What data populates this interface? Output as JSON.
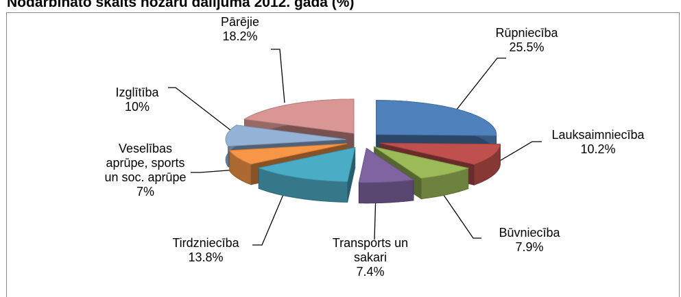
{
  "chart_data": {
    "type": "pie3d",
    "title": "Nodarbināto skaits nozaru dalījumā 2012. gadā (%)",
    "categories": [
      "Rūpniecība",
      "Lauksaimniecība",
      "Būvniecība",
      "Transports un sakari",
      "Tirdzniecība",
      "Veselības aprūpe, sports un soc. aprūpe",
      "Izglītība",
      "Pārējie"
    ],
    "values": [
      25.5,
      10.2,
      7.9,
      7.4,
      13.8,
      7,
      10,
      18.2
    ],
    "value_labels": [
      "25.5%",
      "10.2%",
      "7.9%",
      "7.4%",
      "13.8%",
      "7%",
      "10%",
      "18.2%"
    ],
    "colors": [
      "#4f81bd",
      "#c0504d",
      "#9bbb59",
      "#8064a2",
      "#4bacc6",
      "#f79646",
      "#95b3d7",
      "#d99694"
    ]
  }
}
